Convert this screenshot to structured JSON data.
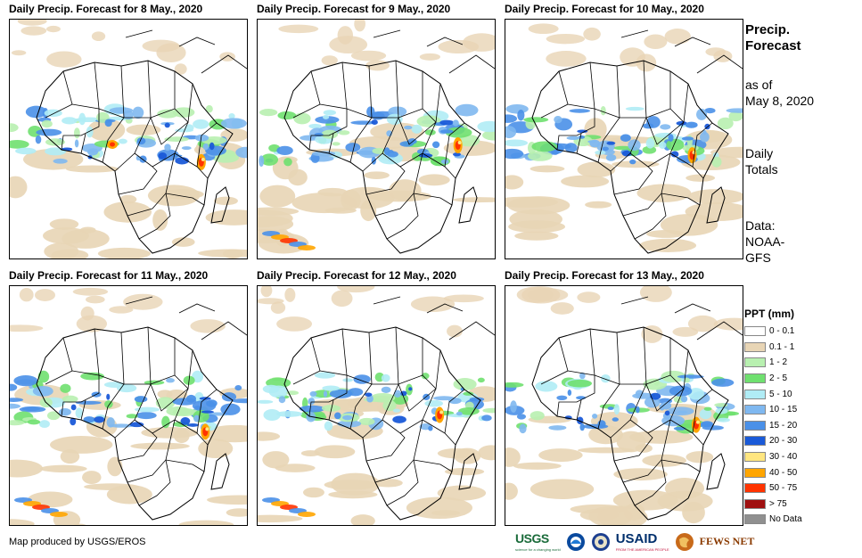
{
  "panels": [
    {
      "title": "Daily Precip. Forecast for 8 May., 2020"
    },
    {
      "title": "Daily Precip. Forecast for 9 May., 2020"
    },
    {
      "title": "Daily Precip. Forecast for 10 May., 2020"
    },
    {
      "title": "Daily Precip. Forecast for 11 May., 2020"
    },
    {
      "title": "Daily Precip. Forecast for 12 May., 2020"
    },
    {
      "title": "Daily Precip. Forecast for 13 May., 2020"
    }
  ],
  "side": {
    "title_line1": "Precip.",
    "title_line2": "Forecast",
    "asof_line1": "as of",
    "asof_line2": "May 8, 2020",
    "totals_line1": "Daily",
    "totals_line2": "Totals",
    "data_line1": "Data:",
    "data_line2": "NOAA-",
    "data_line3": "GFS"
  },
  "legend": {
    "title": "PPT (mm)",
    "items": [
      {
        "label": "0 - 0.1",
        "color": "#ffffff"
      },
      {
        "label": "0.1 - 1",
        "color": "#e8d5b5"
      },
      {
        "label": "1 - 2",
        "color": "#b8f0b0"
      },
      {
        "label": "2 - 5",
        "color": "#6fe06f"
      },
      {
        "label": "5 - 10",
        "color": "#b0ecf5"
      },
      {
        "label": "10 - 15",
        "color": "#7fb8f0"
      },
      {
        "label": "15 - 20",
        "color": "#4a90e8"
      },
      {
        "label": "20 - 30",
        "color": "#1a5ad8"
      },
      {
        "label": "30 - 40",
        "color": "#ffe680"
      },
      {
        "label": "40 - 50",
        "color": "#ffa500"
      },
      {
        "label": "50 - 75",
        "color": "#ff3300"
      },
      {
        "label": "> 75",
        "color": "#a01010"
      },
      {
        "label": "No Data",
        "color": "#909090"
      }
    ]
  },
  "footer": {
    "credit": "Map produced by USGS/EROS"
  },
  "logos": {
    "usgs": "USGS",
    "usgs_tagline": "science for a changing world",
    "usaid": "USAID",
    "usaid_tagline": "FROM THE AMERICAN PEOPLE",
    "fews": "FEWS NET"
  }
}
